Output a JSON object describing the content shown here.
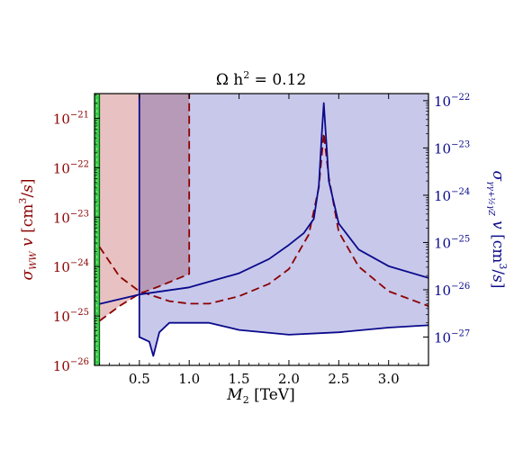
{
  "chart_data": {
    "type": "area",
    "title": "Ω h² = 0.12",
    "xlabel": "M₂ [TeV]",
    "ylabel_left": "σ_WW v [cm³/s]",
    "ylabel_right": "σ_γγ+½γZ v [cm³/s]",
    "xlim": [
      0.05,
      3.4
    ],
    "ylim_left_log10": [
      -26,
      -20.5
    ],
    "ylim_right_log10": [
      -27.6,
      -21.85
    ],
    "x_ticks": [
      "0.5",
      "1.0",
      "1.5",
      "2.0",
      "2.5",
      "3.0"
    ],
    "x_tick_values": [
      0.5,
      1.0,
      1.5,
      2.0,
      2.5,
      3.0
    ],
    "left_ticks": [
      {
        "value": -26,
        "base": "10",
        "exp": "−26"
      },
      {
        "value": -25,
        "base": "10",
        "exp": "−25"
      },
      {
        "value": -24,
        "base": "10",
        "exp": "−24"
      },
      {
        "value": -23,
        "base": "10",
        "exp": "−23"
      },
      {
        "value": -22,
        "base": "10",
        "exp": "−22"
      },
      {
        "value": -21,
        "base": "10",
        "exp": "−21"
      }
    ],
    "right_ticks": [
      {
        "value": -27,
        "base": "10",
        "exp": "−27"
      },
      {
        "value": -26,
        "base": "10",
        "exp": "−26"
      },
      {
        "value": -25,
        "base": "10",
        "exp": "−25"
      },
      {
        "value": -24,
        "base": "10",
        "exp": "−24"
      },
      {
        "value": -23,
        "base": "10",
        "exp": "−23"
      },
      {
        "value": -22,
        "base": "10",
        "exp": "−22"
      }
    ],
    "colors": {
      "ww": "#8b0000",
      "ww_fill": "#e8c2c2",
      "gamma": "#0a0a8c",
      "gamma_fill": "#c8c8eb",
      "overlap_fill": "#b79ab8",
      "green_band": "#2ecc40",
      "tick_left": "#8b0000",
      "tick_right": "#0a0a8c"
    },
    "green_band_x": [
      0.05,
      0.1
    ],
    "series": [
      {
        "id": "ww_relic_curve",
        "axis": "left",
        "style": "dashed",
        "x": [
          0.1,
          0.3,
          0.5,
          0.8,
          1.0,
          1.2,
          1.5,
          1.8,
          2.0,
          2.2,
          2.3,
          2.35,
          2.4,
          2.5,
          2.7,
          3.0,
          3.4
        ],
        "log10": [
          -23.6,
          -24.2,
          -24.5,
          -24.7,
          -24.75,
          -24.75,
          -24.6,
          -24.35,
          -24.05,
          -23.35,
          -22.4,
          -21.3,
          -22.2,
          -23.3,
          -24.0,
          -24.5,
          -24.8
        ]
      },
      {
        "id": "ww_exclusion_boundary",
        "axis": "left",
        "style": "dashed",
        "x": [
          0.1,
          0.3,
          0.5,
          0.7,
          1.0,
          1.0
        ],
        "log10": [
          -25.1,
          -24.8,
          -24.55,
          -24.4,
          -24.15,
          -20.5
        ]
      },
      {
        "id": "gamma_relic_curve",
        "axis": "right",
        "style": "solid",
        "x": [
          0.1,
          0.5,
          1.0,
          1.5,
          1.8,
          2.0,
          2.15,
          2.25,
          2.3,
          2.33,
          2.35,
          2.37,
          2.4,
          2.5,
          2.7,
          3.0,
          3.4
        ],
        "log10": [
          -26.3,
          -26.1,
          -25.95,
          -25.65,
          -25.35,
          -25.05,
          -24.8,
          -24.5,
          -23.8,
          -22.7,
          -22.05,
          -22.7,
          -23.7,
          -24.6,
          -25.15,
          -25.5,
          -25.75
        ]
      },
      {
        "id": "gamma_exclusion_boundary",
        "axis": "right",
        "style": "solid",
        "x": [
          0.5,
          0.5,
          0.6,
          0.64,
          0.7,
          0.8,
          1.0,
          1.2,
          1.5,
          2.0,
          2.5,
          3.0,
          3.4
        ],
        "log10": [
          -21.85,
          -27.0,
          -27.1,
          -27.4,
          -26.9,
          -26.7,
          -26.7,
          -26.7,
          -26.85,
          -26.95,
          -26.9,
          -26.8,
          -26.75
        ]
      }
    ]
  }
}
